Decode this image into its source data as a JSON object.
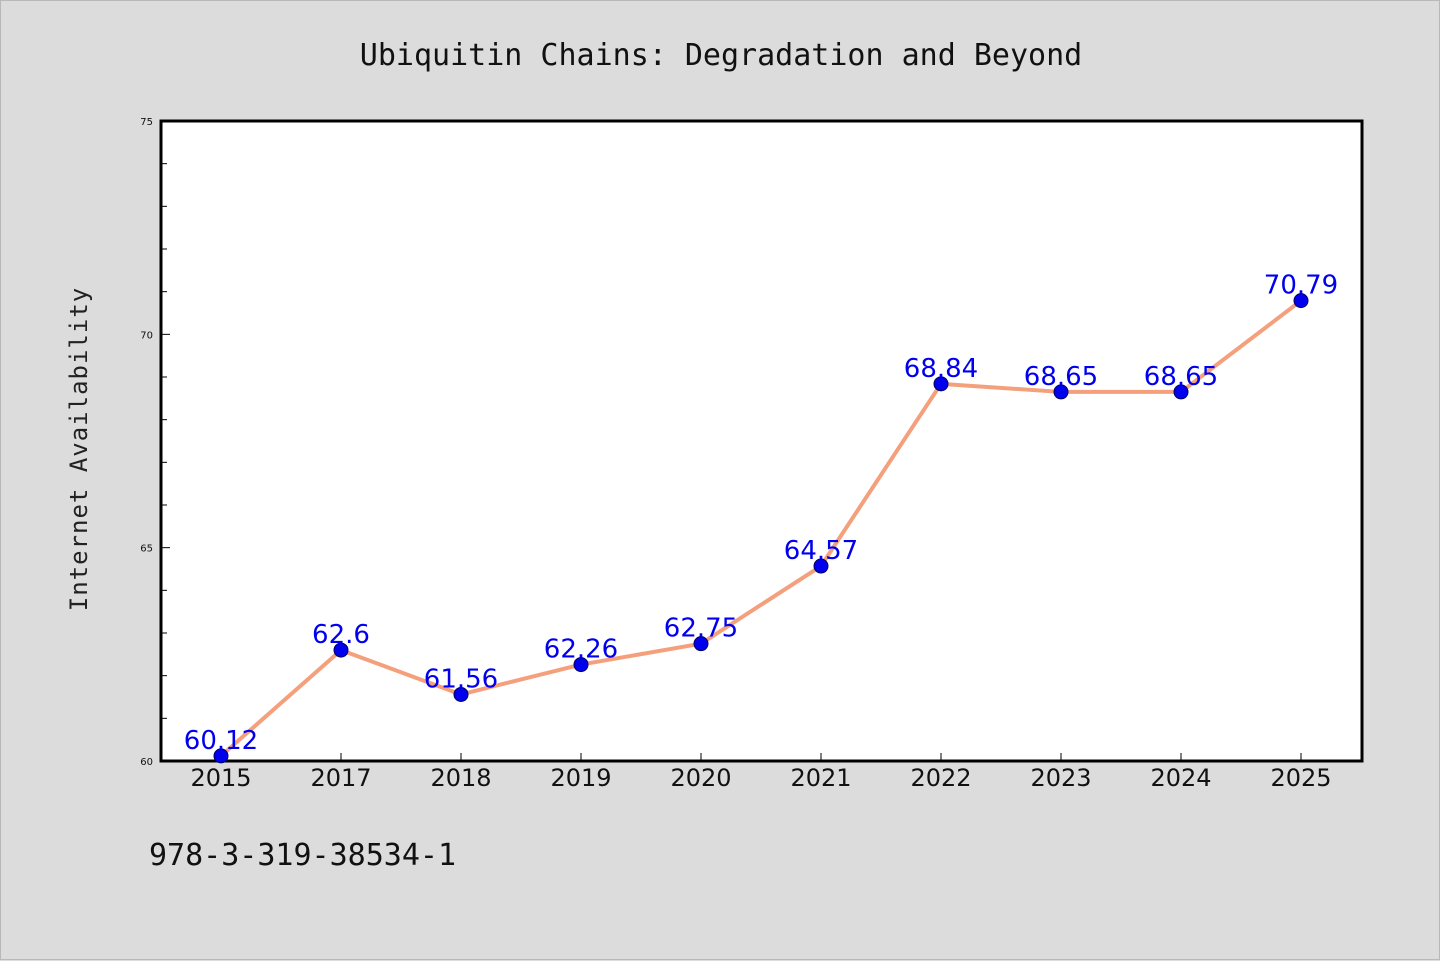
{
  "chart_data": {
    "type": "line",
    "title": "Ubiquitin Chains: Degradation and Beyond",
    "xlabel": "",
    "ylabel": "Internet Availability",
    "categories": [
      "2015",
      "2017",
      "2018",
      "2019",
      "2020",
      "2021",
      "2022",
      "2023",
      "2024",
      "2025"
    ],
    "series": [
      {
        "values": [
          60.12,
          62.6,
          61.56,
          62.26,
          62.75,
          64.57,
          68.84,
          68.65,
          68.65,
          70.79
        ],
        "data_labels": [
          "60.12",
          "62.6",
          "61.56",
          "62.26",
          "62.75",
          "64.57",
          "68.84",
          "68.65",
          "68.65",
          "70.79"
        ],
        "line_color": "#f4a07c",
        "marker_color": "#0000ee",
        "label_color": "#0000ee"
      }
    ],
    "ylim": [
      60,
      75
    ],
    "yticks": [
      "60",
      "65",
      "70",
      "75"
    ],
    "yminor_step": 1,
    "grid": false,
    "legend": "none"
  },
  "footer": {
    "text": "978-3-319-38534-1"
  },
  "colors": {
    "background": "#dcdcdc",
    "plot_background": "#ffffff",
    "axes": "#000000"
  }
}
